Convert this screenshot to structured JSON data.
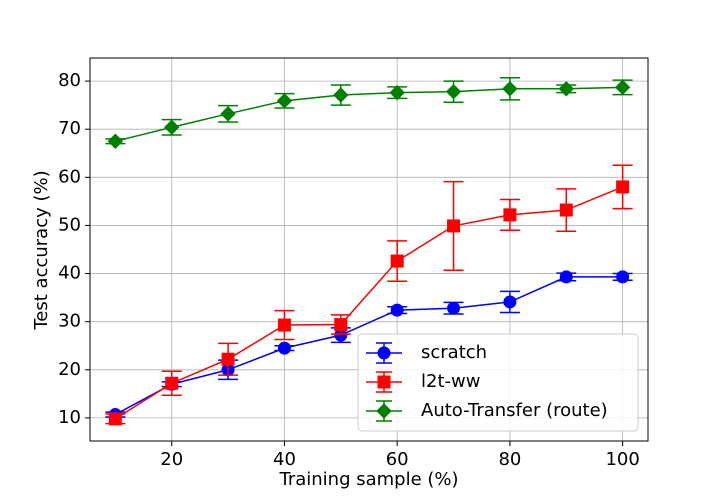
{
  "chart_data": {
    "type": "line",
    "x_label": "Training sample (%)",
    "y_label": "Test accuracy (%)",
    "x": [
      10,
      20,
      30,
      40,
      50,
      60,
      70,
      80,
      90,
      100
    ],
    "series": [
      {
        "name": "scratch",
        "color": "#0000ff",
        "marker": "circle",
        "values": [
          10.7,
          17.0,
          20.0,
          24.5,
          27.2,
          32.4,
          32.8,
          34.1,
          39.3,
          39.3
        ],
        "errors": [
          0.5,
          0.5,
          2.0,
          0.5,
          1.5,
          0.7,
          1.2,
          2.2,
          0.8,
          0.7
        ]
      },
      {
        "name": "l2t-ww",
        "color": "#ff0000",
        "marker": "square",
        "values": [
          9.8,
          17.2,
          22.2,
          29.3,
          29.4,
          42.6,
          49.9,
          52.2,
          53.2,
          58.0
        ],
        "errors": [
          1.0,
          2.5,
          3.3,
          3.0,
          2.0,
          4.2,
          9.2,
          3.2,
          4.4,
          4.5
        ]
      },
      {
        "name": "Auto-Transfer (route)",
        "color": "#008000",
        "marker": "diamond",
        "values": [
          67.5,
          70.4,
          73.2,
          75.9,
          77.1,
          77.6,
          77.8,
          78.4,
          78.4,
          78.7
        ],
        "errors": [
          0.5,
          1.6,
          1.7,
          1.5,
          2.1,
          1.2,
          2.2,
          2.3,
          0.8,
          1.5
        ]
      }
    ],
    "xlim": [
      5.5,
      104.5
    ],
    "xticks": [
      20,
      40,
      60,
      80,
      100
    ],
    "ylim": [
      5.2,
      84.8
    ],
    "yticks": [
      10,
      20,
      30,
      40,
      50,
      60,
      70,
      80
    ],
    "grid": true,
    "legend": "lower right"
  }
}
